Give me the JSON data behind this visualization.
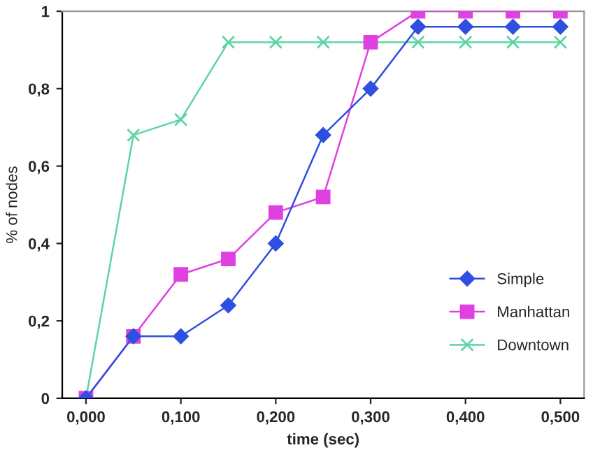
{
  "chart_data": {
    "type": "line",
    "xlabel": "time (sec)",
    "ylabel": "% of nodes",
    "x": [
      0,
      0.05,
      0.1,
      0.15,
      0.2,
      0.25,
      0.3,
      0.35,
      0.4,
      0.45,
      0.5
    ],
    "series": [
      {
        "name": "Simple",
        "color": "#2f4fe0",
        "marker": "diamond",
        "values": [
          0,
          0.16,
          0.16,
          0.24,
          0.4,
          0.68,
          0.8,
          0.96,
          0.96,
          0.96,
          0.96
        ]
      },
      {
        "name": "Manhattan",
        "color": "#e040e0",
        "marker": "square",
        "values": [
          0,
          0.16,
          0.32,
          0.36,
          0.48,
          0.52,
          0.92,
          1,
          1,
          1,
          1
        ]
      },
      {
        "name": "Downtown",
        "color": "#5cd4a4",
        "marker": "cross",
        "values": [
          0,
          0.68,
          0.72,
          0.92,
          0.92,
          0.92,
          0.92,
          0.92,
          0.92,
          0.92,
          0.92
        ]
      }
    ],
    "xlim": [
      -0.025,
      0.525
    ],
    "xticks": [
      {
        "value": 0,
        "label": "0,000"
      },
      {
        "value": 0.1,
        "label": "0,100"
      },
      {
        "value": 0.2,
        "label": "0,200"
      },
      {
        "value": 0.3,
        "label": "0,300"
      },
      {
        "value": 0.4,
        "label": "0,400"
      },
      {
        "value": 0.5,
        "label": "0,500"
      }
    ],
    "ylim": [
      0,
      1
    ],
    "yticks": [
      0,
      {
        "value": 0.2,
        "label": "0,2"
      },
      {
        "value": 0.4,
        "label": "0,4"
      },
      {
        "value": 0.6,
        "label": "0,6"
      },
      {
        "value": 0.8,
        "label": "0,8"
      },
      1
    ],
    "grid": false,
    "legend": "right",
    "line_style": "solid"
  }
}
